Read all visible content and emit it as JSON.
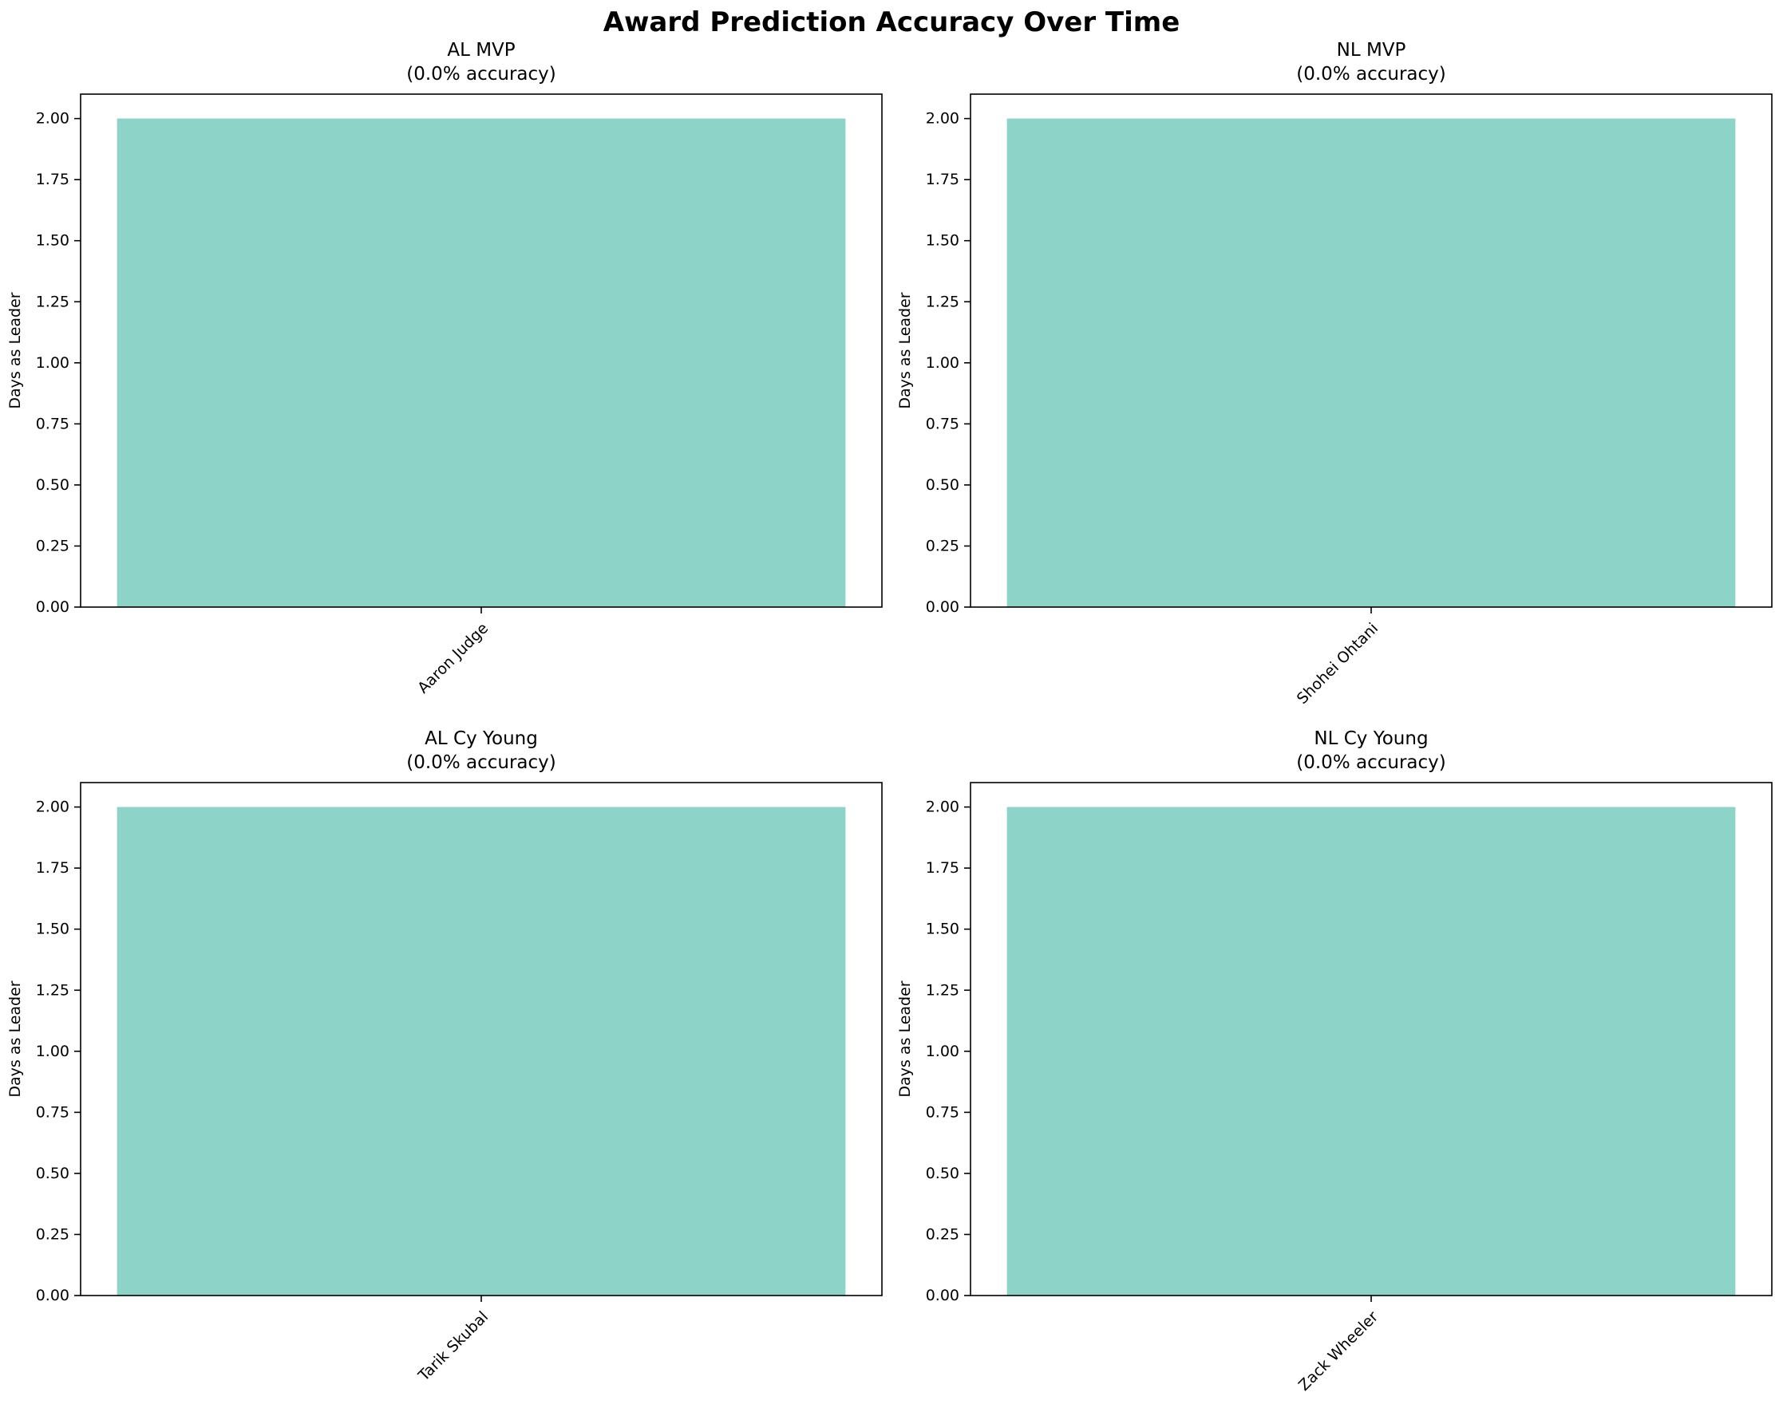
{
  "figure_title": "Award Prediction Accuracy Over Time",
  "chart_data": [
    {
      "type": "bar",
      "title": "AL MVP",
      "subtitle": "(0.0% accuracy)",
      "categories": [
        "Aaron Judge"
      ],
      "values": [
        2
      ],
      "xlabel": "",
      "ylabel": "Days as Leader",
      "ylim": [
        0,
        2.1
      ],
      "yticks": [
        0,
        0.25,
        0.5,
        0.75,
        1,
        1.25,
        1.5,
        1.75,
        2
      ],
      "ytick_labels": [
        "0.00",
        "0.25",
        "0.50",
        "0.75",
        "1.00",
        "1.25",
        "1.50",
        "1.75",
        "2.00"
      ],
      "grid": false,
      "bar_color": "#8dd3c7"
    },
    {
      "type": "bar",
      "title": "NL MVP",
      "subtitle": "(0.0% accuracy)",
      "categories": [
        "Shohei Ohtani"
      ],
      "values": [
        2
      ],
      "xlabel": "",
      "ylabel": "Days as Leader",
      "ylim": [
        0,
        2.1
      ],
      "yticks": [
        0,
        0.25,
        0.5,
        0.75,
        1,
        1.25,
        1.5,
        1.75,
        2
      ],
      "ytick_labels": [
        "0.00",
        "0.25",
        "0.50",
        "0.75",
        "1.00",
        "1.25",
        "1.50",
        "1.75",
        "2.00"
      ],
      "grid": false,
      "bar_color": "#8dd3c7"
    },
    {
      "type": "bar",
      "title": "AL Cy Young",
      "subtitle": "(0.0% accuracy)",
      "categories": [
        "Tarik Skubal"
      ],
      "values": [
        2
      ],
      "xlabel": "",
      "ylabel": "Days as Leader",
      "ylim": [
        0,
        2.1
      ],
      "yticks": [
        0,
        0.25,
        0.5,
        0.75,
        1,
        1.25,
        1.5,
        1.75,
        2
      ],
      "ytick_labels": [
        "0.00",
        "0.25",
        "0.50",
        "0.75",
        "1.00",
        "1.25",
        "1.50",
        "1.75",
        "2.00"
      ],
      "grid": false,
      "bar_color": "#8dd3c7"
    },
    {
      "type": "bar",
      "title": "NL Cy Young",
      "subtitle": "(0.0% accuracy)",
      "categories": [
        "Zack Wheeler"
      ],
      "values": [
        2
      ],
      "xlabel": "",
      "ylabel": "Days as Leader",
      "ylim": [
        0,
        2.1
      ],
      "yticks": [
        0,
        0.25,
        0.5,
        0.75,
        1,
        1.25,
        1.5,
        1.75,
        2
      ],
      "ytick_labels": [
        "0.00",
        "0.25",
        "0.50",
        "0.75",
        "1.00",
        "1.25",
        "1.50",
        "1.75",
        "2.00"
      ],
      "grid": false,
      "bar_color": "#8dd3c7"
    }
  ]
}
